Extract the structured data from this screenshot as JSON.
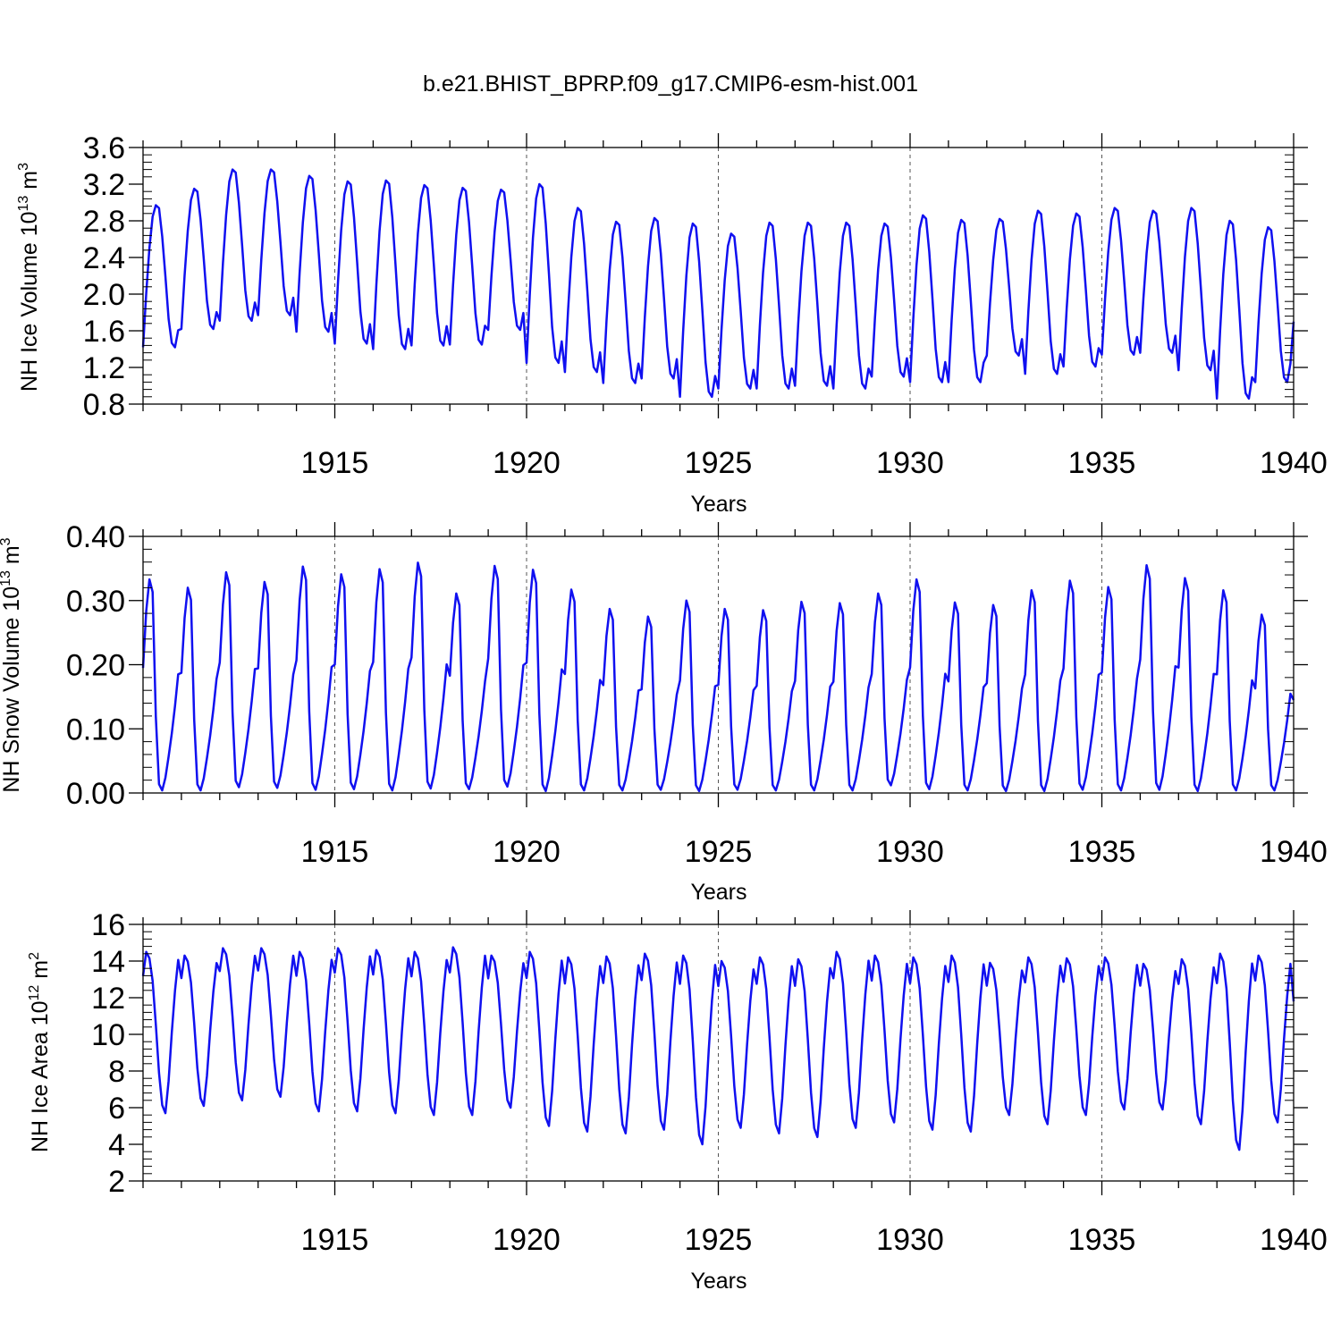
{
  "title": "b.e21.BHIST_BPRP.f09_g17.CMIP6-esm-hist.001",
  "line_color": "#1010f0",
  "chart_data": [
    {
      "type": "line",
      "ylabel_text": "NH Ice Volume 10",
      "ylabel_exp": "13",
      "ylabel_unit": "m",
      "ylabel_unit_exp": "3",
      "xlabel": "Years",
      "xlim": [
        1910.0,
        1940.0
      ],
      "ylim": [
        0.8,
        3.6
      ],
      "xticks": [
        1915,
        1920,
        1925,
        1930,
        1935,
        1940
      ],
      "yticks": [
        0.8,
        1.2,
        1.6,
        2.0,
        2.4,
        2.8,
        3.2,
        3.6
      ],
      "ytick_labels": [
        "0.8",
        "1.2",
        "1.6",
        "2.0",
        "2.4",
        "2.8",
        "3.2",
        "3.6"
      ],
      "x_start": 1910.0,
      "step_years": 0.0833333,
      "annual_max": [
        2.97,
        3.15,
        3.36,
        3.36,
        3.29,
        3.23,
        3.24,
        3.19,
        3.16,
        3.14,
        3.2,
        2.94,
        2.79,
        2.83,
        2.77,
        2.66,
        2.78,
        2.78,
        2.78,
        2.77,
        2.86,
        2.81,
        2.82,
        2.91,
        2.88,
        2.94,
        2.91,
        2.94,
        2.8,
        2.73
      ],
      "annual_min": [
        1.42,
        1.62,
        1.71,
        1.77,
        1.59,
        1.46,
        1.4,
        1.44,
        1.45,
        1.61,
        1.25,
        1.15,
        1.03,
        1.08,
        0.88,
        0.97,
        0.97,
        1.0,
        0.97,
        1.1,
        1.04,
        1.04,
        1.33,
        1.13,
        1.21,
        1.34,
        1.36,
        1.17,
        0.86,
        1.04
      ],
      "shape": [
        0.0,
        0.38,
        0.7,
        0.92,
        1.0,
        0.98,
        0.78,
        0.5,
        0.2,
        0.03,
        0.0,
        0.12
      ],
      "end_value": 1.7
    },
    {
      "type": "line",
      "ylabel_text": "NH Snow Volume 10",
      "ylabel_exp": "13",
      "ylabel_unit": "m",
      "ylabel_unit_exp": "3",
      "xlabel": "Years",
      "xlim": [
        1910.0,
        1940.0
      ],
      "ylim": [
        0.0,
        0.4
      ],
      "xticks": [
        1915,
        1920,
        1925,
        1930,
        1935,
        1940
      ],
      "yticks": [
        0.0,
        0.1,
        0.2,
        0.3,
        0.4
      ],
      "ytick_labels": [
        "0.00",
        "0.10",
        "0.20",
        "0.30",
        "0.40"
      ],
      "x_start": 1910.0,
      "step_years": 0.0833333,
      "annual_max": [
        0.333,
        0.32,
        0.344,
        0.329,
        0.353,
        0.341,
        0.349,
        0.359,
        0.311,
        0.354,
        0.348,
        0.317,
        0.287,
        0.275,
        0.3,
        0.287,
        0.285,
        0.298,
        0.296,
        0.311,
        0.333,
        0.297,
        0.293,
        0.316,
        0.331,
        0.321,
        0.355,
        0.335,
        0.316,
        0.278
      ],
      "annual_min": [
        0.004,
        0.004,
        0.009,
        0.008,
        0.005,
        0.006,
        0.004,
        0.007,
        0.006,
        0.01,
        0.003,
        0.004,
        0.004,
        0.005,
        0.003,
        0.005,
        0.004,
        0.004,
        0.004,
        0.012,
        0.006,
        0.004,
        0.003,
        0.003,
        0.005,
        0.004,
        0.005,
        0.003,
        0.004,
        0.004
      ],
      "shape": [
        0.58,
        0.85,
        1.0,
        0.94,
        0.35,
        0.03,
        0.0,
        0.06,
        0.16,
        0.27,
        0.4,
        0.55
      ],
      "end_value": 0.145
    },
    {
      "type": "line",
      "ylabel_text": "NH Ice Area 10",
      "ylabel_exp": "12",
      "ylabel_unit": "m",
      "ylabel_unit_exp": "2",
      "xlabel": "Years",
      "xlim": [
        1910.0,
        1940.0
      ],
      "ylim": [
        2.0,
        16.0
      ],
      "xticks": [
        1915,
        1920,
        1925,
        1930,
        1935,
        1940
      ],
      "yticks": [
        2,
        4,
        6,
        8,
        10,
        12,
        14,
        16
      ],
      "ytick_labels": [
        "2",
        "4",
        "6",
        "8",
        "10",
        "12",
        "14",
        "16"
      ],
      "x_start": 1910.0,
      "step_years": 0.0833333,
      "annual_max": [
        14.5,
        14.3,
        14.7,
        14.7,
        14.5,
        14.7,
        14.6,
        14.5,
        14.75,
        14.3,
        14.5,
        14.2,
        14.25,
        14.4,
        14.3,
        14.0,
        14.2,
        14.1,
        14.5,
        14.3,
        14.2,
        14.3,
        13.9,
        14.2,
        14.15,
        14.2,
        13.85,
        14.1,
        14.4,
        14.3
      ],
      "annual_min": [
        5.7,
        6.1,
        6.4,
        6.6,
        5.8,
        5.8,
        5.7,
        5.6,
        5.6,
        6.0,
        5.0,
        4.7,
        4.6,
        4.8,
        4.0,
        4.9,
        4.6,
        4.4,
        4.9,
        5.2,
        4.8,
        4.7,
        5.6,
        5.1,
        5.6,
        5.9,
        5.9,
        5.1,
        3.7,
        5.2
      ],
      "shape": [
        0.85,
        1.0,
        0.96,
        0.82,
        0.55,
        0.25,
        0.05,
        0.0,
        0.2,
        0.5,
        0.76,
        0.95
      ],
      "end_value": 11.8
    }
  ]
}
